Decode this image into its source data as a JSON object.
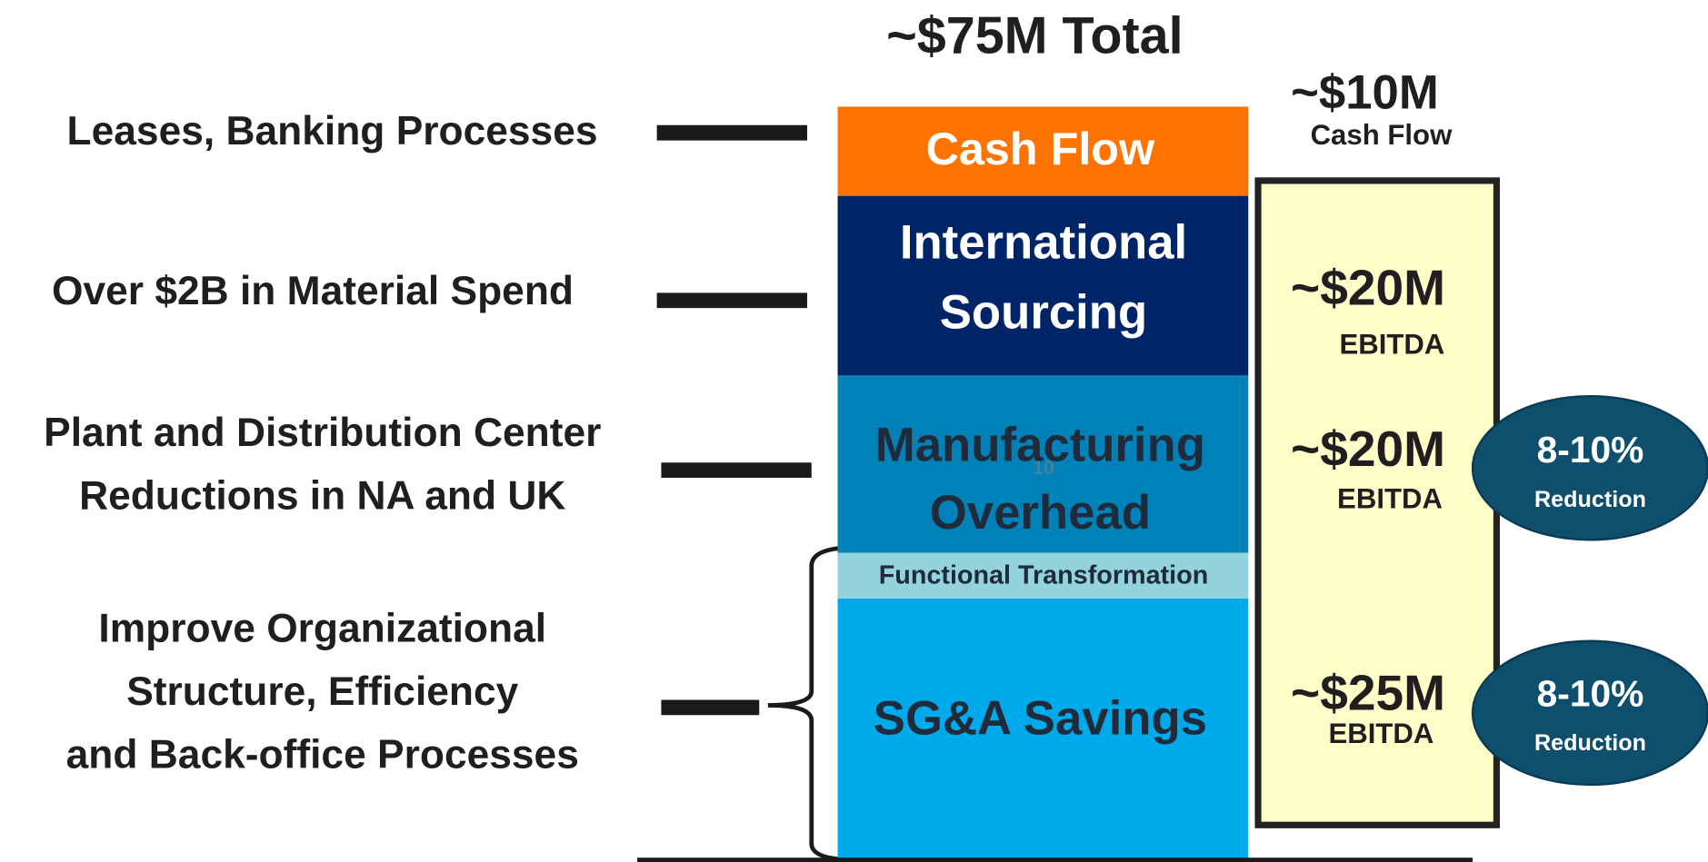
{
  "title": "~$75M Total",
  "left_labels": [
    {
      "lines": [
        "Leases, Banking Processes"
      ]
    },
    {
      "lines": [
        "Over $2B in Material Spend"
      ]
    },
    {
      "lines": [
        "Plant and Distribution Center",
        "Reductions in NA and UK"
      ]
    },
    {
      "lines": [
        "Improve Organizational",
        "Structure, Efficiency",
        "and Back-office Processes"
      ]
    }
  ],
  "segments": [
    {
      "lines": [
        "Cash Flow"
      ]
    },
    {
      "lines": [
        "International",
        "Sourcing"
      ]
    },
    {
      "lines": [
        "Manufacturing",
        "Overhead"
      ]
    },
    {
      "lines": [
        "Functional Transformation"
      ]
    },
    {
      "lines": [
        "SG&A Savings"
      ]
    }
  ],
  "page_number": "10",
  "savings": [
    {
      "amount": "~$10M",
      "type": "Cash Flow"
    },
    {
      "amount": "~$20M",
      "type": "EBITDA"
    },
    {
      "amount": "~$20M",
      "type": "EBITDA"
    },
    {
      "amount": "~$25M",
      "type": "EBITDA"
    }
  ],
  "reductions": [
    {
      "value": "8-10%",
      "label": "Reduction"
    },
    {
      "value": "8-10%",
      "label": "Reduction"
    }
  ]
}
